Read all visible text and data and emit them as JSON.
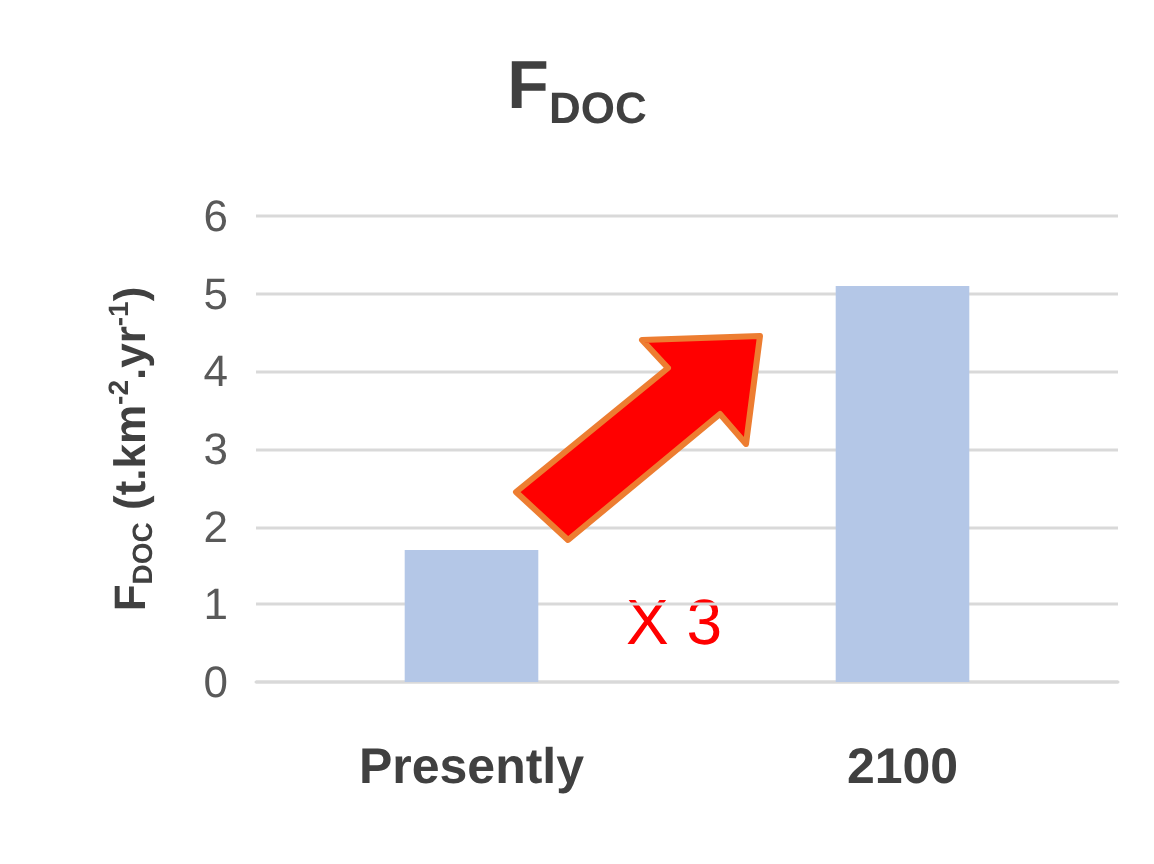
{
  "chart_data": {
    "type": "bar",
    "title": "F$_{DOC}$",
    "ylabel": "F$_{DOC}$ (t.km$^{-2}$.yr$^{-1}$)",
    "categories": [
      "Presently",
      "2100"
    ],
    "values": [
      1.7,
      5.1
    ],
    "color": "#b4c7e7",
    "ylim": [
      0,
      6
    ],
    "yticks": [
      0,
      1,
      2,
      3,
      4,
      5,
      6
    ],
    "grid": "y",
    "annotations": [
      "X 3"
    ]
  }
}
